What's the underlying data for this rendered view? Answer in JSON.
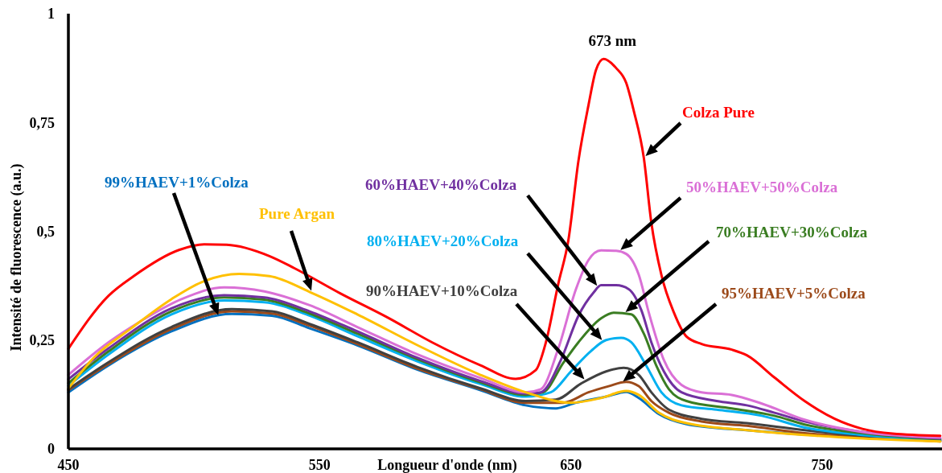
{
  "chart_data": {
    "type": "line",
    "xlabel": "Longueur d'onde (nm)",
    "ylabel": "Intensité de fluorescence (a.u.)",
    "annotations": [
      "673 nm"
    ],
    "xlim": [
      450,
      798
    ],
    "xticks": [
      450,
      550,
      650,
      750
    ],
    "ylim": [
      0,
      1
    ],
    "yticks": [
      0,
      {
        "value": 0.25,
        "label": "0,25"
      },
      {
        "value": 0.5,
        "label": "0,5"
      },
      {
        "value": 0.75,
        "label": "0,75"
      },
      1
    ],
    "series": [
      {
        "name": "99%HAEV+1%Colza",
        "color": "#0070c0",
        "x": [
          450,
          466,
          491,
          515,
          531,
          546,
          565,
          589,
          614,
          632,
          644,
          652,
          664,
          672,
          677,
          685,
          696,
          720,
          743,
          766,
          797
        ],
        "values": [
          0.13,
          0.192,
          0.27,
          0.31,
          0.306,
          0.277,
          0.238,
          0.182,
          0.135,
          0.1,
          0.093,
          0.106,
          0.12,
          0.131,
          0.117,
          0.08,
          0.057,
          0.043,
          0.033,
          0.026,
          0.019
        ]
      },
      {
        "name": "95%HAEV+5%Colza",
        "color": "#9c4a1a",
        "x": [
          450,
          466,
          491,
          515,
          531,
          546,
          565,
          589,
          614,
          632,
          647,
          657,
          665,
          672,
          677,
          682,
          689,
          702,
          720,
          743,
          766,
          797
        ],
        "values": [
          0.135,
          0.195,
          0.275,
          0.316,
          0.311,
          0.283,
          0.241,
          0.184,
          0.137,
          0.106,
          0.106,
          0.13,
          0.144,
          0.154,
          0.144,
          0.11,
          0.083,
          0.063,
          0.053,
          0.036,
          0.028,
          0.017
        ]
      },
      {
        "name": "90%HAEV+10%Colza",
        "color": "#404040",
        "x": [
          450,
          466,
          491,
          515,
          531,
          546,
          565,
          589,
          614,
          632,
          644,
          654,
          664,
          671,
          677,
          682,
          689,
          702,
          720,
          743,
          766,
          797
        ],
        "values": [
          0.137,
          0.199,
          0.28,
          0.321,
          0.316,
          0.287,
          0.245,
          0.188,
          0.139,
          0.11,
          0.113,
          0.15,
          0.178,
          0.186,
          0.17,
          0.13,
          0.09,
          0.069,
          0.059,
          0.043,
          0.03,
          0.019
        ]
      },
      {
        "name": "80%HAEV+20%Colza",
        "color": "#00b0f0",
        "x": [
          450,
          466,
          491,
          512,
          528,
          546,
          565,
          589,
          614,
          632,
          642,
          650,
          658,
          664,
          670,
          674,
          680,
          686,
          694,
          708,
          726,
          743,
          766,
          797
        ],
        "values": [
          0.145,
          0.217,
          0.309,
          0.341,
          0.337,
          0.306,
          0.259,
          0.201,
          0.149,
          0.12,
          0.13,
          0.178,
          0.225,
          0.25,
          0.255,
          0.245,
          0.191,
          0.13,
          0.1,
          0.09,
          0.076,
          0.049,
          0.032,
          0.021
        ]
      },
      {
        "name": "70%HAEV+30%Colza",
        "color": "#3a7d22",
        "x": [
          450,
          466,
          491,
          512,
          528,
          546,
          565,
          589,
          614,
          632,
          639,
          647,
          653,
          662,
          667,
          674,
          679,
          684,
          689,
          696,
          714,
          731,
          743,
          766,
          797
        ],
        "values": [
          0.151,
          0.224,
          0.316,
          0.348,
          0.343,
          0.311,
          0.265,
          0.206,
          0.153,
          0.124,
          0.13,
          0.198,
          0.245,
          0.3,
          0.313,
          0.309,
          0.265,
          0.191,
          0.137,
          0.11,
          0.093,
          0.076,
          0.056,
          0.036,
          0.022
        ]
      },
      {
        "name": "60%HAEV+40%Colza",
        "color": "#7030a0",
        "x": [
          450,
          466,
          491,
          512,
          528,
          546,
          565,
          589,
          614,
          632,
          638,
          646,
          653,
          659,
          662,
          668,
          673,
          678,
          682,
          687,
          694,
          708,
          720,
          731,
          743,
          766,
          797
        ],
        "values": [
          0.16,
          0.231,
          0.323,
          0.353,
          0.348,
          0.316,
          0.27,
          0.209,
          0.156,
          0.127,
          0.13,
          0.204,
          0.306,
          0.359,
          0.376,
          0.376,
          0.367,
          0.319,
          0.245,
          0.178,
          0.13,
          0.11,
          0.1,
          0.083,
          0.063,
          0.039,
          0.024
        ]
      },
      {
        "name": "50%HAEV+50%Colza",
        "color": "#da70d6",
        "x": [
          450,
          466,
          479,
          495,
          512,
          528,
          546,
          565,
          589,
          614,
          632,
          638,
          645,
          652,
          657,
          662,
          668,
          672,
          677,
          681,
          687,
          694,
          702,
          714,
          726,
          743,
          766,
          797
        ],
        "values": [
          0.17,
          0.245,
          0.294,
          0.344,
          0.371,
          0.362,
          0.33,
          0.28,
          0.217,
          0.163,
          0.13,
          0.137,
          0.231,
          0.367,
          0.434,
          0.456,
          0.455,
          0.448,
          0.4,
          0.313,
          0.204,
          0.147,
          0.13,
          0.124,
          0.104,
          0.067,
          0.039,
          0.026
        ]
      },
      {
        "name": "Pure Argan",
        "color": "#ffc000",
        "x": [
          450,
          460,
          475,
          491,
          503,
          518,
          530,
          547,
          565,
          589,
          614,
          632,
          650,
          662,
          672,
          677,
          685,
          696,
          720,
          743,
          766,
          797
        ],
        "values": [
          0.139,
          0.209,
          0.277,
          0.344,
          0.383,
          0.402,
          0.397,
          0.358,
          0.309,
          0.238,
          0.17,
          0.13,
          0.106,
          0.117,
          0.133,
          0.124,
          0.083,
          0.059,
          0.043,
          0.032,
          0.024,
          0.017
        ]
      },
      {
        "name": "Colza Pure",
        "color": "#ff0000",
        "x": [
          450,
          466,
          476,
          494,
          504,
          513,
          530,
          540,
          558,
          577,
          595,
          614,
          628,
          636,
          640,
          645,
          649,
          653,
          657,
          660,
          663,
          668,
          672,
          675,
          679,
          682,
          686,
          691,
          696,
          702,
          714,
          720,
          731,
          743,
          755,
          766,
          778,
          797
        ],
        "values": [
          0.23,
          0.352,
          0.397,
          0.457,
          0.47,
          0.469,
          0.443,
          0.415,
          0.358,
          0.302,
          0.244,
          0.192,
          0.161,
          0.181,
          0.244,
          0.38,
          0.48,
          0.662,
          0.79,
          0.871,
          0.896,
          0.875,
          0.841,
          0.777,
          0.669,
          0.52,
          0.4,
          0.313,
          0.258,
          0.241,
          0.228,
          0.215,
          0.164,
          0.11,
          0.069,
          0.046,
          0.035,
          0.03
        ]
      }
    ]
  }
}
